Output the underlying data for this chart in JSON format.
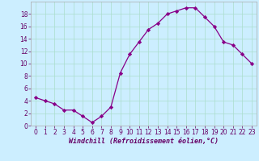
{
  "x": [
    0,
    1,
    2,
    3,
    4,
    5,
    6,
    7,
    8,
    9,
    10,
    11,
    12,
    13,
    14,
    15,
    16,
    17,
    18,
    19,
    20,
    21,
    22,
    23
  ],
  "y": [
    4.5,
    4.0,
    3.5,
    2.5,
    2.5,
    1.5,
    0.5,
    1.5,
    3.0,
    8.5,
    11.5,
    13.5,
    15.5,
    16.5,
    18.0,
    18.5,
    19.0,
    19.0,
    17.5,
    16.0,
    13.5,
    13.0,
    11.5,
    10.0
  ],
  "line_color": "#880088",
  "marker": "D",
  "marker_size": 2.2,
  "linewidth": 0.9,
  "xlabel": "Windchill (Refroidissement éolien,°C)",
  "xlabel_fontsize": 6.0,
  "bg_color": "#cceeff",
  "grid_color": "#aaddcc",
  "tick_color": "#660066",
  "xlim": [
    -0.5,
    23.5
  ],
  "ylim": [
    0,
    20
  ],
  "yticks": [
    0,
    2,
    4,
    6,
    8,
    10,
    12,
    14,
    16,
    18
  ],
  "xticks": [
    0,
    1,
    2,
    3,
    4,
    5,
    6,
    7,
    8,
    9,
    10,
    11,
    12,
    13,
    14,
    15,
    16,
    17,
    18,
    19,
    20,
    21,
    22,
    23
  ],
  "tick_fontsize": 5.5,
  "spine_color": "#aaaaaa"
}
